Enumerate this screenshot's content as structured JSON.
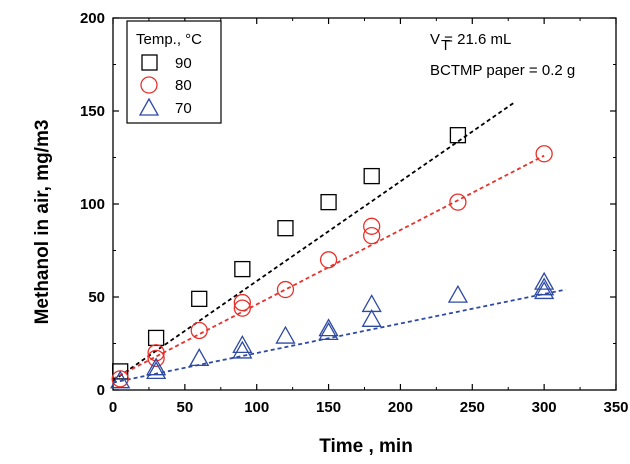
{
  "chart_data": {
    "type": "scatter",
    "title": "",
    "xlabel": "Time , min",
    "ylabel": "Methanol in air, mg/m3",
    "xlim": [
      0,
      350
    ],
    "ylim": [
      0,
      200
    ],
    "xticks": [
      0,
      50,
      100,
      150,
      200,
      250,
      300,
      350
    ],
    "yticks": [
      0,
      50,
      100,
      150,
      200
    ],
    "grid": false,
    "legend": {
      "title": "Temp., °C",
      "position": "top-left",
      "entries": [
        "90",
        "80",
        "70"
      ]
    },
    "annotations": [
      "V = 21.6 mL",
      "T",
      "BCTMP paper = 0.2 g"
    ],
    "series": [
      {
        "name": "90",
        "color": "#000000",
        "marker": "square",
        "points": [
          [
            5,
            10
          ],
          [
            30,
            28
          ],
          [
            60,
            49
          ],
          [
            90,
            65
          ],
          [
            120,
            87
          ],
          [
            150,
            101
          ],
          [
            180,
            115
          ],
          [
            240,
            137
          ]
        ],
        "fit": [
          [
            0,
            5
          ],
          [
            280,
            155
          ]
        ]
      },
      {
        "name": "80",
        "color": "#e8312a",
        "marker": "circle",
        "points": [
          [
            5,
            6
          ],
          [
            30,
            17
          ],
          [
            30,
            20
          ],
          [
            60,
            32
          ],
          [
            90,
            44
          ],
          [
            90,
            47
          ],
          [
            120,
            54
          ],
          [
            150,
            70
          ],
          [
            180,
            83
          ],
          [
            180,
            88
          ],
          [
            240,
            101
          ],
          [
            300,
            127
          ]
        ],
        "fit": [
          [
            0,
            6
          ],
          [
            300,
            126
          ]
        ]
      },
      {
        "name": "70",
        "color": "#2e4aa3",
        "marker": "triangle",
        "points": [
          [
            5,
            5
          ],
          [
            30,
            10
          ],
          [
            30,
            12
          ],
          [
            60,
            17
          ],
          [
            90,
            21
          ],
          [
            90,
            24
          ],
          [
            120,
            29
          ],
          [
            150,
            31
          ],
          [
            150,
            33
          ],
          [
            180,
            38
          ],
          [
            180,
            46
          ],
          [
            240,
            51
          ],
          [
            300,
            53
          ],
          [
            300,
            55
          ],
          [
            300,
            58
          ]
        ],
        "fit": [
          [
            0,
            4
          ],
          [
            315,
            54
          ]
        ]
      }
    ]
  }
}
